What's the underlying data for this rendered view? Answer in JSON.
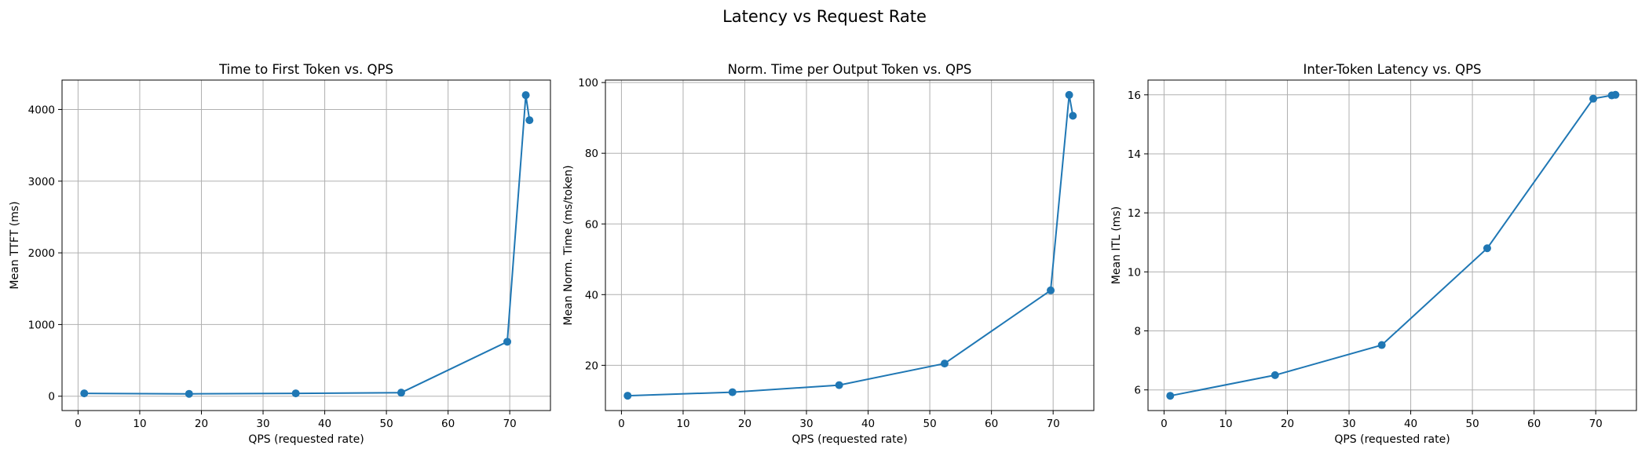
{
  "figure_title": "Latency vs Request Rate",
  "colors": {
    "series": "#1f77b4",
    "grid": "#b0b0b0"
  },
  "chart_data": [
    {
      "type": "line",
      "title": "Time to First Token vs. QPS",
      "xlabel": "QPS (requested rate)",
      "ylabel": "Mean TTFT (ms)",
      "xlim": [
        -2.6,
        76.6
      ],
      "ylim": [
        -200,
        4410
      ],
      "xticks": [
        0,
        10,
        20,
        30,
        40,
        50,
        60,
        70
      ],
      "yticks": [
        0,
        1000,
        2000,
        3000,
        4000
      ],
      "grid": true,
      "x": [
        1.0,
        18.0,
        35.3,
        52.4,
        69.6,
        72.6,
        73.2
      ],
      "y": [
        40,
        33,
        40,
        50,
        760,
        4200,
        3850
      ]
    },
    {
      "type": "line",
      "title": "Norm. Time per Output Token vs. QPS",
      "xlabel": "QPS (requested rate)",
      "ylabel": "Mean Norm. Time (ms/token)",
      "xlim": [
        -2.6,
        76.6
      ],
      "ylim": [
        7.2,
        100.7
      ],
      "xticks": [
        0,
        10,
        20,
        30,
        40,
        50,
        60,
        70
      ],
      "yticks": [
        20,
        40,
        60,
        80,
        100
      ],
      "grid": true,
      "x": [
        1.0,
        18.0,
        35.3,
        52.4,
        69.6,
        72.6,
        73.2
      ],
      "y": [
        11.4,
        12.4,
        14.4,
        20.5,
        41.2,
        96.5,
        90.6
      ]
    },
    {
      "type": "line",
      "title": "Inter-Token Latency vs. QPS",
      "xlabel": "QPS (requested rate)",
      "ylabel": "Mean ITL (ms)",
      "xlim": [
        -2.6,
        76.6
      ],
      "ylim": [
        5.3,
        16.5
      ],
      "xticks": [
        0,
        10,
        20,
        30,
        40,
        50,
        60,
        70
      ],
      "yticks": [
        6,
        8,
        10,
        12,
        14,
        16
      ],
      "grid": true,
      "x": [
        1.0,
        18.0,
        35.3,
        52.4,
        69.6,
        72.6,
        73.2
      ],
      "y": [
        5.8,
        6.5,
        7.52,
        10.8,
        15.87,
        15.98,
        16.0
      ]
    }
  ]
}
